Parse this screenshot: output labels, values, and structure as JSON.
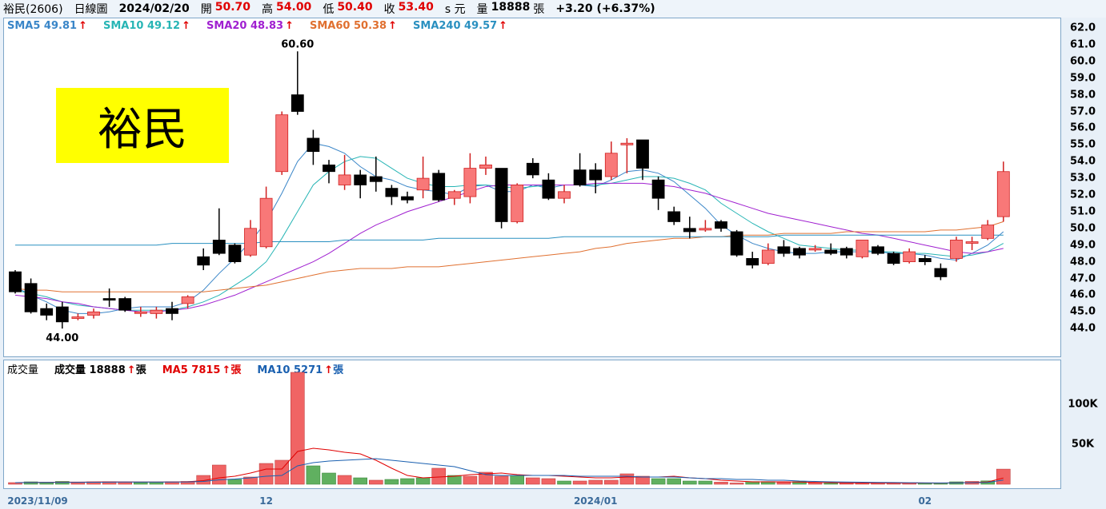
{
  "header": {
    "stock": "裕民(2606)",
    "chart_type": "日線圖",
    "date": "2024/02/20",
    "open_label": "開",
    "open": "50.70",
    "high_label": "高",
    "high": "54.00",
    "low_label": "低",
    "low": "50.40",
    "close_label": "收",
    "close": "53.40",
    "currency": "s 元",
    "volume_label": "量",
    "volume": "18888",
    "volume_unit": "張",
    "change": "+3.20 (+6.37%)"
  },
  "price_legend": [
    {
      "label": "SMA5 49.81",
      "color": "#3a86c8"
    },
    {
      "label": "SMA10 49.12",
      "color": "#27b5b5"
    },
    {
      "label": "SMA20 48.83",
      "color": "#a020d0"
    },
    {
      "label": "SMA60 50.38",
      "color": "#e07030"
    },
    {
      "label": "SMA240 49.57",
      "color": "#2a90c0"
    }
  ],
  "arrow_up": "↑",
  "stock_label": "裕民",
  "annotations": {
    "high": "60.60",
    "low": "44.00"
  },
  "volume_legend": [
    {
      "label": "成交量",
      "color": "#000000",
      "arrow": false
    },
    {
      "label": "成交量 18888",
      "suffix": "張",
      "color": "#000000",
      "arrow": true
    },
    {
      "label": "MA5 7815",
      "suffix": "張",
      "color": "#e00000",
      "arrow": true
    },
    {
      "label": "MA10 5271",
      "suffix": "張",
      "color": "#1a60b0",
      "arrow": true
    }
  ],
  "colors": {
    "up": "#f87878",
    "down": "#000000",
    "vol_up": "#f06464",
    "vol_down": "#60b060"
  },
  "chart_data": {
    "type": "candlestick",
    "price_axis": {
      "min": 43,
      "max": 63,
      "ticks": [
        "62.0",
        "61.0",
        "60.0",
        "59.0",
        "58.0",
        "57.0",
        "56.0",
        "55.0",
        "54.0",
        "53.0",
        "52.0",
        "51.0",
        "50.0",
        "49.0",
        "48.0",
        "47.0",
        "46.0",
        "45.0",
        "44.0"
      ]
    },
    "volume_axis": {
      "max": 140000,
      "ticks": [
        "100K",
        "50K"
      ]
    },
    "x_ticks": [
      {
        "label": "2023/11/09",
        "index": 0
      },
      {
        "label": "12",
        "index": 16
      },
      {
        "label": "2024/01",
        "index": 37
      },
      {
        "label": "02",
        "index": 58
      }
    ],
    "candles": [
      [
        47.4,
        46.2,
        47.5,
        46.1
      ],
      [
        46.7,
        45.0,
        47.0,
        44.9
      ],
      [
        45.2,
        44.8,
        45.5,
        44.5
      ],
      [
        45.3,
        44.4,
        45.6,
        44.0
      ],
      [
        44.7,
        44.7,
        44.9,
        44.5
      ],
      [
        44.8,
        45.0,
        45.2,
        44.6
      ],
      [
        45.8,
        45.7,
        46.4,
        45.3
      ],
      [
        45.8,
        45.1,
        45.9,
        45.0
      ],
      [
        45.0,
        45.0,
        45.3,
        44.7
      ],
      [
        44.9,
        45.1,
        45.3,
        44.6
      ],
      [
        45.2,
        44.9,
        45.6,
        44.5
      ],
      [
        45.5,
        45.9,
        46.0,
        45.2
      ],
      [
        48.3,
        47.8,
        48.8,
        47.5
      ],
      [
        49.3,
        48.5,
        51.2,
        48.4
      ],
      [
        49.0,
        48.0,
        49.1,
        47.9
      ],
      [
        48.4,
        50.0,
        50.5,
        48.3
      ],
      [
        48.9,
        51.8,
        52.5,
        48.8
      ],
      [
        53.4,
        56.8,
        57.0,
        53.2
      ],
      [
        58.0,
        57.0,
        60.6,
        56.8
      ],
      [
        55.4,
        54.6,
        55.9,
        53.8
      ],
      [
        53.8,
        53.4,
        54.1,
        52.7
      ],
      [
        52.6,
        53.2,
        54.4,
        52.3
      ],
      [
        53.2,
        52.6,
        53.5,
        51.8
      ],
      [
        53.1,
        52.8,
        54.3,
        52.2
      ],
      [
        52.4,
        51.9,
        52.6,
        51.4
      ],
      [
        51.9,
        51.7,
        52.2,
        51.5
      ],
      [
        52.3,
        53.0,
        54.3,
        51.8
      ],
      [
        53.3,
        51.7,
        53.5,
        51.6
      ],
      [
        51.8,
        52.2,
        52.3,
        51.4
      ],
      [
        51.9,
        53.6,
        54.5,
        51.5
      ],
      [
        53.6,
        53.8,
        54.3,
        53.2
      ],
      [
        53.6,
        50.4,
        53.6,
        50.0
      ],
      [
        50.4,
        52.6,
        52.7,
        50.3
      ],
      [
        53.9,
        53.2,
        54.2,
        53.0
      ],
      [
        52.9,
        51.8,
        53.3,
        51.7
      ],
      [
        51.8,
        52.2,
        52.6,
        51.5
      ],
      [
        53.5,
        52.6,
        54.5,
        52.5
      ],
      [
        53.5,
        52.9,
        53.9,
        52.1
      ],
      [
        53.1,
        54.5,
        55.2,
        52.9
      ],
      [
        55.0,
        55.1,
        55.4,
        53.3
      ],
      [
        55.3,
        53.6,
        55.3,
        52.9
      ],
      [
        52.9,
        51.8,
        53.1,
        51.1
      ],
      [
        51.0,
        50.4,
        51.3,
        50.2
      ],
      [
        50.0,
        49.8,
        50.7,
        49.4
      ],
      [
        49.9,
        50.0,
        50.5,
        49.8
      ],
      [
        50.4,
        50.0,
        50.5,
        49.8
      ],
      [
        49.8,
        48.4,
        49.9,
        48.3
      ],
      [
        48.2,
        47.8,
        48.6,
        47.6
      ],
      [
        47.9,
        48.7,
        49.1,
        47.8
      ],
      [
        48.9,
        48.5,
        49.3,
        48.3
      ],
      [
        48.8,
        48.4,
        48.9,
        48.2
      ],
      [
        48.8,
        48.8,
        49.0,
        48.6
      ],
      [
        48.7,
        48.5,
        49.1,
        48.4
      ],
      [
        48.8,
        48.4,
        48.9,
        48.2
      ],
      [
        48.3,
        49.3,
        49.3,
        48.2
      ],
      [
        48.9,
        48.5,
        49.0,
        48.4
      ],
      [
        48.5,
        47.9,
        48.6,
        47.8
      ],
      [
        48.0,
        48.6,
        48.8,
        47.9
      ],
      [
        48.2,
        48.0,
        48.4,
        47.8
      ],
      [
        47.6,
        47.1,
        47.9,
        46.9
      ],
      [
        48.2,
        49.3,
        49.5,
        48.0
      ],
      [
        49.2,
        49.2,
        49.5,
        48.7
      ],
      [
        49.4,
        50.2,
        50.5,
        49.3
      ],
      [
        50.7,
        53.4,
        54.0,
        50.4
      ]
    ],
    "volume": [
      [
        2000,
        1
      ],
      [
        3000,
        0
      ],
      [
        2500,
        0
      ],
      [
        3500,
        0
      ],
      [
        2200,
        1
      ],
      [
        3000,
        1
      ],
      [
        3200,
        1
      ],
      [
        2800,
        1
      ],
      [
        2200,
        0
      ],
      [
        2600,
        0
      ],
      [
        3200,
        1
      ],
      [
        3500,
        1
      ],
      [
        11000,
        1
      ],
      [
        24000,
        1
      ],
      [
        6000,
        0
      ],
      [
        9000,
        1
      ],
      [
        26000,
        1
      ],
      [
        30000,
        1
      ],
      [
        140000,
        1
      ],
      [
        23000,
        0
      ],
      [
        14000,
        0
      ],
      [
        11000,
        1
      ],
      [
        8000,
        0
      ],
      [
        5000,
        1
      ],
      [
        6000,
        0
      ],
      [
        7000,
        0
      ],
      [
        8000,
        0
      ],
      [
        20000,
        1
      ],
      [
        11000,
        0
      ],
      [
        10000,
        1
      ],
      [
        15000,
        1
      ],
      [
        10000,
        1
      ],
      [
        11000,
        0
      ],
      [
        8000,
        1
      ],
      [
        7000,
        1
      ],
      [
        4000,
        0
      ],
      [
        4000,
        1
      ],
      [
        5000,
        1
      ],
      [
        5000,
        1
      ],
      [
        13000,
        1
      ],
      [
        10000,
        1
      ],
      [
        7000,
        0
      ],
      [
        7000,
        0
      ],
      [
        4000,
        0
      ],
      [
        4000,
        0
      ],
      [
        2600,
        1
      ],
      [
        1500,
        1
      ],
      [
        3300,
        0
      ],
      [
        3300,
        0
      ],
      [
        2600,
        1
      ],
      [
        3300,
        0
      ],
      [
        2000,
        1
      ],
      [
        1600,
        0
      ],
      [
        1300,
        1
      ],
      [
        1700,
        1
      ],
      [
        1600,
        1
      ],
      [
        1300,
        1
      ],
      [
        1300,
        1
      ],
      [
        1200,
        0
      ],
      [
        1200,
        0
      ],
      [
        3000,
        0
      ],
      [
        3500,
        1
      ],
      [
        4200,
        0
      ],
      [
        18888,
        1
      ]
    ],
    "series": [
      {
        "name": "SMA5",
        "color": "#3a86c8",
        "values": [
          46.5,
          46.0,
          45.6,
          45.1,
          44.9,
          44.9,
          45.0,
          45.2,
          45.3,
          45.3,
          45.3,
          45.6,
          46.3,
          47.3,
          48.2,
          49.2,
          50.4,
          52.1,
          54.0,
          55.1,
          54.9,
          54.5,
          53.7,
          53.1,
          52.9,
          52.5,
          52.3,
          52.2,
          52.0,
          52.5,
          52.6,
          52.2,
          52.2,
          52.6,
          52.4,
          52.6,
          52.6,
          52.5,
          52.9,
          53.4,
          53.5,
          53.3,
          52.8,
          52.0,
          51.2,
          50.2,
          49.6,
          49.1,
          48.8,
          48.6,
          48.5,
          48.5,
          48.6,
          48.6,
          48.6,
          48.6,
          48.5,
          48.5,
          48.4,
          48.2,
          48.1,
          48.5,
          49.0,
          49.8
        ]
      },
      {
        "name": "SMA10",
        "color": "#27b5b5",
        "values": [
          46.3,
          46.1,
          45.9,
          45.6,
          45.4,
          45.3,
          45.2,
          45.1,
          45.1,
          45.1,
          45.1,
          45.3,
          45.6,
          46.0,
          46.6,
          47.2,
          48.0,
          49.4,
          51.0,
          52.6,
          53.4,
          54.0,
          54.3,
          54.2,
          53.6,
          53.0,
          52.7,
          52.5,
          52.5,
          52.6,
          52.6,
          52.5,
          52.4,
          52.5,
          52.6,
          52.6,
          52.6,
          52.6,
          52.7,
          52.9,
          53.1,
          53.1,
          53.0,
          52.7,
          52.3,
          51.5,
          50.9,
          50.3,
          49.8,
          49.4,
          49.0,
          48.9,
          48.8,
          48.7,
          48.7,
          48.6,
          48.6,
          48.5,
          48.5,
          48.4,
          48.3,
          48.4,
          48.6,
          49.1
        ]
      },
      {
        "name": "SMA20",
        "color": "#a020d0",
        "values": [
          46.0,
          45.9,
          45.8,
          45.6,
          45.5,
          45.3,
          45.2,
          45.1,
          45.0,
          45.0,
          45.1,
          45.2,
          45.4,
          45.7,
          46.0,
          46.4,
          46.8,
          47.2,
          47.6,
          48.0,
          48.5,
          49.1,
          49.7,
          50.2,
          50.6,
          51.0,
          51.3,
          51.6,
          51.9,
          52.2,
          52.5,
          52.6,
          52.6,
          52.6,
          52.6,
          52.6,
          52.6,
          52.7,
          52.7,
          52.7,
          52.7,
          52.6,
          52.5,
          52.3,
          52.1,
          51.8,
          51.5,
          51.2,
          50.9,
          50.7,
          50.5,
          50.3,
          50.1,
          49.9,
          49.7,
          49.6,
          49.4,
          49.2,
          49.0,
          48.8,
          48.6,
          48.5,
          48.6,
          48.8
        ]
      },
      {
        "name": "SMA60",
        "color": "#e07030",
        "values": [
          46.4,
          46.3,
          46.3,
          46.2,
          46.2,
          46.2,
          46.2,
          46.2,
          46.2,
          46.2,
          46.2,
          46.2,
          46.2,
          46.3,
          46.4,
          46.5,
          46.6,
          46.8,
          47.0,
          47.2,
          47.4,
          47.5,
          47.6,
          47.6,
          47.6,
          47.7,
          47.7,
          47.7,
          47.8,
          47.9,
          48.0,
          48.1,
          48.2,
          48.3,
          48.4,
          48.5,
          48.6,
          48.8,
          48.9,
          49.1,
          49.2,
          49.3,
          49.4,
          49.4,
          49.5,
          49.5,
          49.6,
          49.6,
          49.6,
          49.7,
          49.7,
          49.7,
          49.7,
          49.8,
          49.8,
          49.8,
          49.8,
          49.8,
          49.8,
          49.9,
          49.9,
          50.0,
          50.1,
          50.4
        ]
      },
      {
        "name": "SMA240",
        "color": "#2a90c0",
        "values": [
          49.0,
          49.0,
          49.0,
          49.0,
          49.0,
          49.0,
          49.0,
          49.0,
          49.0,
          49.0,
          49.1,
          49.1,
          49.1,
          49.1,
          49.1,
          49.1,
          49.2,
          49.2,
          49.2,
          49.2,
          49.2,
          49.3,
          49.3,
          49.3,
          49.3,
          49.3,
          49.3,
          49.4,
          49.4,
          49.4,
          49.4,
          49.4,
          49.4,
          49.4,
          49.4,
          49.5,
          49.5,
          49.5,
          49.5,
          49.5,
          49.5,
          49.5,
          49.5,
          49.5,
          49.5,
          49.5,
          49.5,
          49.5,
          49.5,
          49.6,
          49.6,
          49.6,
          49.6,
          49.6,
          49.6,
          49.6,
          49.6,
          49.6,
          49.6,
          49.6,
          49.6,
          49.6,
          49.6,
          49.6
        ]
      }
    ],
    "volume_series": [
      {
        "name": "MA5",
        "color": "#e00000",
        "values": [
          2000,
          2200,
          2400,
          2600,
          2600,
          2800,
          2900,
          2900,
          2800,
          2700,
          2900,
          3100,
          4500,
          8000,
          10000,
          14000,
          19000,
          19000,
          41000,
          45000,
          43000,
          40000,
          38000,
          30000,
          20000,
          11000,
          8000,
          9000,
          10000,
          12000,
          13000,
          14000,
          12000,
          11000,
          11000,
          10000,
          9000,
          8000,
          8000,
          9000,
          9000,
          9000,
          10000,
          8000,
          7000,
          5000,
          4000,
          3000,
          3000,
          3000,
          2800,
          2400,
          2000,
          1800,
          1600,
          1600,
          1500,
          1500,
          1500,
          1400,
          1800,
          2300,
          2900,
          7815
        ]
      },
      {
        "name": "MA10",
        "color": "#1a60b0",
        "values": [
          2000,
          2100,
          2200,
          2300,
          2400,
          2500,
          2600,
          2700,
          2700,
          2700,
          2800,
          2900,
          3500,
          5500,
          6500,
          8000,
          10000,
          11000,
          23000,
          27000,
          29000,
          30000,
          31000,
          32000,
          30000,
          28000,
          26000,
          24000,
          22000,
          17000,
          12000,
          11000,
          11000,
          11000,
          11000,
          11000,
          10000,
          10000,
          10000,
          10000,
          9000,
          9000,
          9000,
          8000,
          7000,
          7000,
          6000,
          6000,
          5000,
          5000,
          4000,
          3500,
          3000,
          2700,
          2500,
          2200,
          2100,
          1900,
          1700,
          1600,
          1700,
          2000,
          2300,
          5271
        ]
      }
    ]
  }
}
